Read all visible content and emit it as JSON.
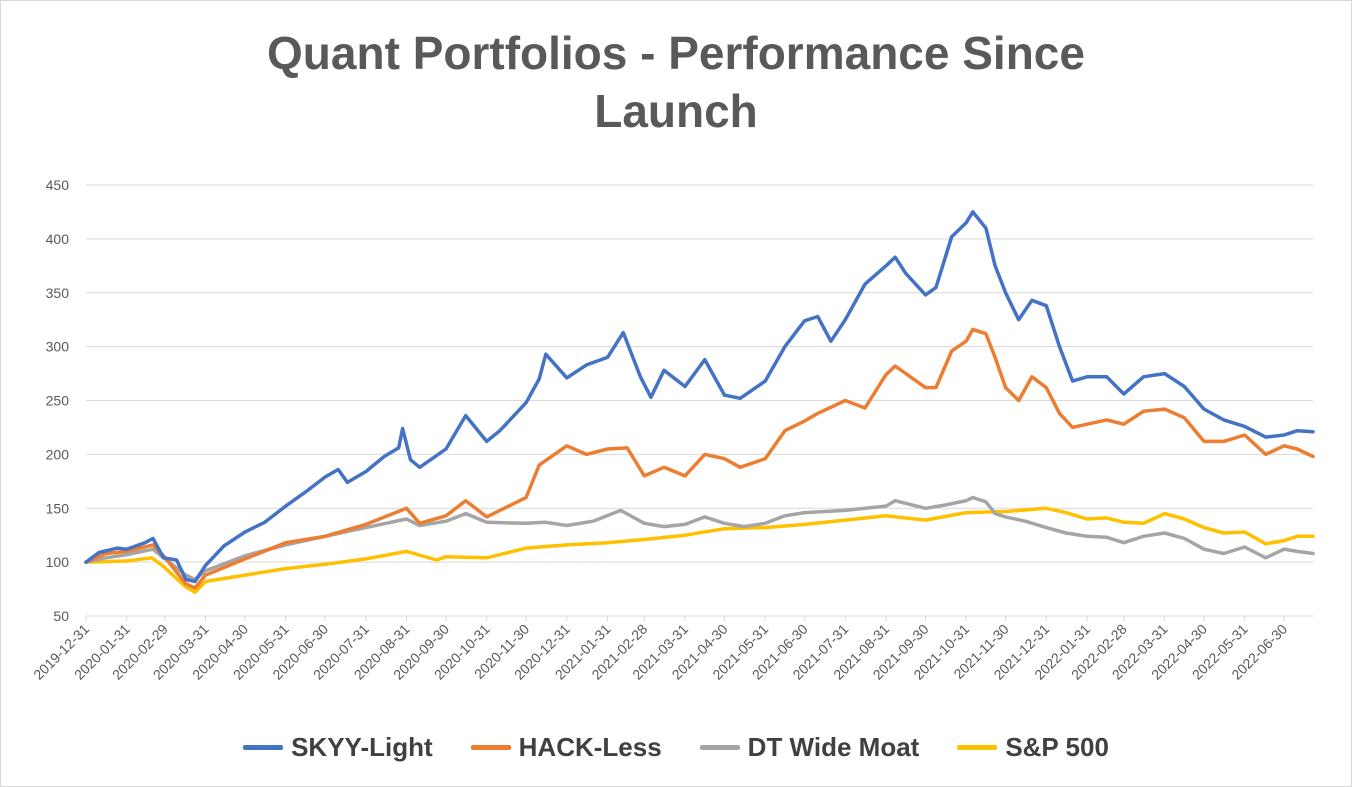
{
  "chart_data": {
    "type": "line",
    "title_lines": [
      "Quant Portfolios - Performance Since",
      "Launch"
    ],
    "xlabel": "",
    "ylabel": "",
    "ylim": [
      50,
      450
    ],
    "y_ticks": [
      50,
      100,
      150,
      200,
      250,
      300,
      350,
      400,
      450
    ],
    "x_ticks": [
      "2019-12-31",
      "2020-01-31",
      "2020-02-29",
      "2020-03-31",
      "2020-04-30",
      "2020-05-31",
      "2020-06-30",
      "2020-07-31",
      "2020-08-31",
      "2020-09-30",
      "2020-10-31",
      "2020-11-30",
      "2020-12-31",
      "2021-01-31",
      "2021-02-28",
      "2021-03-31",
      "2021-04-30",
      "2021-05-31",
      "2021-06-30",
      "2021-07-31",
      "2021-08-31",
      "2021-09-30",
      "2021-10-31",
      "2021-11-30",
      "2021-12-31",
      "2022-01-31",
      "2022-02-28",
      "2022-03-31",
      "2022-04-30",
      "2022-05-31",
      "2022-06-30"
    ],
    "x_end": "2022-07-22",
    "grid": true,
    "legend_position": "bottom",
    "series": [
      {
        "name": "SKYY-Light",
        "color": "#4472C4",
        "points": [
          [
            "2019-12-31",
            100
          ],
          [
            "2020-01-10",
            109
          ],
          [
            "2020-01-24",
            113
          ],
          [
            "2020-01-31",
            112
          ],
          [
            "2020-02-14",
            118
          ],
          [
            "2020-02-20",
            122
          ],
          [
            "2020-02-28",
            104
          ],
          [
            "2020-03-09",
            102
          ],
          [
            "2020-03-16",
            84
          ],
          [
            "2020-03-23",
            82
          ],
          [
            "2020-03-31",
            97
          ],
          [
            "2020-04-14",
            115
          ],
          [
            "2020-04-30",
            128
          ],
          [
            "2020-05-15",
            137
          ],
          [
            "2020-05-31",
            152
          ],
          [
            "2020-06-15",
            165
          ],
          [
            "2020-06-30",
            179
          ],
          [
            "2020-07-10",
            186
          ],
          [
            "2020-07-17",
            174
          ],
          [
            "2020-07-31",
            184
          ],
          [
            "2020-08-14",
            198
          ],
          [
            "2020-08-25",
            206
          ],
          [
            "2020-08-28",
            224
          ],
          [
            "2020-09-03",
            195
          ],
          [
            "2020-09-10",
            188
          ],
          [
            "2020-09-30",
            205
          ],
          [
            "2020-10-15",
            236
          ],
          [
            "2020-10-31",
            212
          ],
          [
            "2020-11-10",
            222
          ],
          [
            "2020-11-30",
            248
          ],
          [
            "2020-12-10",
            270
          ],
          [
            "2020-12-15",
            293
          ],
          [
            "2020-12-31",
            271
          ],
          [
            "2021-01-15",
            283
          ],
          [
            "2021-01-31",
            290
          ],
          [
            "2021-02-12",
            313
          ],
          [
            "2021-02-25",
            272
          ],
          [
            "2021-03-05",
            253
          ],
          [
            "2021-03-15",
            278
          ],
          [
            "2021-03-31",
            263
          ],
          [
            "2021-04-15",
            288
          ],
          [
            "2021-04-30",
            255
          ],
          [
            "2021-05-12",
            252
          ],
          [
            "2021-05-31",
            268
          ],
          [
            "2021-06-15",
            300
          ],
          [
            "2021-06-30",
            324
          ],
          [
            "2021-07-10",
            328
          ],
          [
            "2021-07-20",
            305
          ],
          [
            "2021-07-31",
            325
          ],
          [
            "2021-08-15",
            358
          ],
          [
            "2021-08-31",
            375
          ],
          [
            "2021-09-07",
            383
          ],
          [
            "2021-09-15",
            368
          ],
          [
            "2021-09-30",
            348
          ],
          [
            "2021-10-08",
            355
          ],
          [
            "2021-10-20",
            402
          ],
          [
            "2021-10-31",
            415
          ],
          [
            "2021-11-05",
            425
          ],
          [
            "2021-11-15",
            410
          ],
          [
            "2021-11-22",
            375
          ],
          [
            "2021-11-30",
            350
          ],
          [
            "2021-12-10",
            325
          ],
          [
            "2021-12-20",
            343
          ],
          [
            "2021-12-31",
            338
          ],
          [
            "2022-01-10",
            300
          ],
          [
            "2022-01-20",
            268
          ],
          [
            "2022-01-31",
            272
          ],
          [
            "2022-02-15",
            272
          ],
          [
            "2022-02-28",
            256
          ],
          [
            "2022-03-15",
            272
          ],
          [
            "2022-03-31",
            275
          ],
          [
            "2022-04-15",
            263
          ],
          [
            "2022-04-30",
            242
          ],
          [
            "2022-05-15",
            232
          ],
          [
            "2022-05-31",
            226
          ],
          [
            "2022-06-16",
            216
          ],
          [
            "2022-06-30",
            218
          ],
          [
            "2022-07-10",
            222
          ],
          [
            "2022-07-22",
            221
          ]
        ]
      },
      {
        "name": "HACK-Less",
        "color": "#ED7D31",
        "points": [
          [
            "2019-12-31",
            100
          ],
          [
            "2020-01-15",
            108
          ],
          [
            "2020-01-31",
            110
          ],
          [
            "2020-02-20",
            116
          ],
          [
            "2020-02-28",
            106
          ],
          [
            "2020-03-16",
            80
          ],
          [
            "2020-03-23",
            76
          ],
          [
            "2020-03-31",
            88
          ],
          [
            "2020-04-30",
            103
          ],
          [
            "2020-05-31",
            118
          ],
          [
            "2020-06-30",
            124
          ],
          [
            "2020-07-31",
            135
          ],
          [
            "2020-08-31",
            150
          ],
          [
            "2020-09-10",
            136
          ],
          [
            "2020-09-30",
            143
          ],
          [
            "2020-10-15",
            157
          ],
          [
            "2020-10-31",
            142
          ],
          [
            "2020-11-30",
            160
          ],
          [
            "2020-12-10",
            190
          ],
          [
            "2020-12-31",
            208
          ],
          [
            "2021-01-15",
            200
          ],
          [
            "2021-01-31",
            205
          ],
          [
            "2021-02-15",
            206
          ],
          [
            "2021-02-28",
            180
          ],
          [
            "2021-03-15",
            188
          ],
          [
            "2021-03-31",
            180
          ],
          [
            "2021-04-15",
            200
          ],
          [
            "2021-04-30",
            196
          ],
          [
            "2021-05-12",
            188
          ],
          [
            "2021-05-31",
            196
          ],
          [
            "2021-06-15",
            222
          ],
          [
            "2021-06-30",
            231
          ],
          [
            "2021-07-10",
            238
          ],
          [
            "2021-07-31",
            250
          ],
          [
            "2021-08-15",
            243
          ],
          [
            "2021-08-31",
            274
          ],
          [
            "2021-09-07",
            282
          ],
          [
            "2021-09-15",
            275
          ],
          [
            "2021-09-30",
            262
          ],
          [
            "2021-10-08",
            262
          ],
          [
            "2021-10-20",
            296
          ],
          [
            "2021-10-31",
            305
          ],
          [
            "2021-11-05",
            316
          ],
          [
            "2021-11-15",
            312
          ],
          [
            "2021-11-22",
            290
          ],
          [
            "2021-11-30",
            262
          ],
          [
            "2021-12-10",
            250
          ],
          [
            "2021-12-20",
            272
          ],
          [
            "2021-12-31",
            262
          ],
          [
            "2022-01-10",
            238
          ],
          [
            "2022-01-20",
            225
          ],
          [
            "2022-01-31",
            228
          ],
          [
            "2022-02-15",
            232
          ],
          [
            "2022-02-28",
            228
          ],
          [
            "2022-03-15",
            240
          ],
          [
            "2022-03-31",
            242
          ],
          [
            "2022-04-15",
            234
          ],
          [
            "2022-04-30",
            212
          ],
          [
            "2022-05-15",
            212
          ],
          [
            "2022-05-31",
            218
          ],
          [
            "2022-06-16",
            200
          ],
          [
            "2022-06-30",
            208
          ],
          [
            "2022-07-10",
            205
          ],
          [
            "2022-07-22",
            198
          ]
        ]
      },
      {
        "name": "DT Wide Moat",
        "color": "#A5A5A5",
        "points": [
          [
            "2019-12-31",
            100
          ],
          [
            "2020-01-15",
            104
          ],
          [
            "2020-01-31",
            107
          ],
          [
            "2020-02-20",
            112
          ],
          [
            "2020-02-28",
            104
          ],
          [
            "2020-03-16",
            88
          ],
          [
            "2020-03-23",
            84
          ],
          [
            "2020-03-31",
            92
          ],
          [
            "2020-04-30",
            106
          ],
          [
            "2020-05-31",
            116
          ],
          [
            "2020-06-30",
            124
          ],
          [
            "2020-07-31",
            132
          ],
          [
            "2020-08-31",
            140
          ],
          [
            "2020-09-10",
            134
          ],
          [
            "2020-09-30",
            138
          ],
          [
            "2020-10-15",
            145
          ],
          [
            "2020-10-31",
            137
          ],
          [
            "2020-11-30",
            136
          ],
          [
            "2020-12-15",
            137
          ],
          [
            "2020-12-31",
            134
          ],
          [
            "2021-01-20",
            138
          ],
          [
            "2021-02-10",
            148
          ],
          [
            "2021-02-28",
            136
          ],
          [
            "2021-03-15",
            133
          ],
          [
            "2021-03-31",
            135
          ],
          [
            "2021-04-15",
            142
          ],
          [
            "2021-04-30",
            136
          ],
          [
            "2021-05-15",
            133
          ],
          [
            "2021-05-31",
            136
          ],
          [
            "2021-06-15",
            143
          ],
          [
            "2021-06-30",
            146
          ],
          [
            "2021-07-31",
            148
          ],
          [
            "2021-08-15",
            150
          ],
          [
            "2021-08-31",
            152
          ],
          [
            "2021-09-07",
            157
          ],
          [
            "2021-09-30",
            150
          ],
          [
            "2021-10-15",
            153
          ],
          [
            "2021-10-31",
            157
          ],
          [
            "2021-11-05",
            160
          ],
          [
            "2021-11-15",
            156
          ],
          [
            "2021-11-22",
            145
          ],
          [
            "2021-11-30",
            142
          ],
          [
            "2021-12-15",
            138
          ],
          [
            "2021-12-31",
            132
          ],
          [
            "2022-01-15",
            127
          ],
          [
            "2022-01-31",
            124
          ],
          [
            "2022-02-15",
            123
          ],
          [
            "2022-02-28",
            118
          ],
          [
            "2022-03-15",
            124
          ],
          [
            "2022-03-31",
            127
          ],
          [
            "2022-04-15",
            122
          ],
          [
            "2022-04-30",
            112
          ],
          [
            "2022-05-15",
            108
          ],
          [
            "2022-05-31",
            114
          ],
          [
            "2022-06-16",
            104
          ],
          [
            "2022-06-30",
            112
          ],
          [
            "2022-07-10",
            110
          ],
          [
            "2022-07-22",
            108
          ]
        ]
      },
      {
        "name": "S&P 500",
        "color": "#FFC000",
        "points": [
          [
            "2019-12-31",
            100
          ],
          [
            "2020-01-31",
            101
          ],
          [
            "2020-02-19",
            104
          ],
          [
            "2020-02-28",
            96
          ],
          [
            "2020-03-16",
            77
          ],
          [
            "2020-03-23",
            72
          ],
          [
            "2020-03-31",
            82
          ],
          [
            "2020-04-30",
            88
          ],
          [
            "2020-05-31",
            94
          ],
          [
            "2020-06-30",
            98
          ],
          [
            "2020-07-31",
            103
          ],
          [
            "2020-08-31",
            110
          ],
          [
            "2020-09-23",
            102
          ],
          [
            "2020-09-30",
            105
          ],
          [
            "2020-10-31",
            104
          ],
          [
            "2020-11-30",
            113
          ],
          [
            "2020-12-31",
            116
          ],
          [
            "2021-01-31",
            118
          ],
          [
            "2021-02-28",
            121
          ],
          [
            "2021-03-31",
            125
          ],
          [
            "2021-04-30",
            131
          ],
          [
            "2021-05-31",
            132
          ],
          [
            "2021-06-30",
            135
          ],
          [
            "2021-07-31",
            139
          ],
          [
            "2021-08-31",
            143
          ],
          [
            "2021-09-30",
            139
          ],
          [
            "2021-10-31",
            146
          ],
          [
            "2021-11-30",
            147
          ],
          [
            "2021-12-31",
            150
          ],
          [
            "2022-01-15",
            146
          ],
          [
            "2022-01-31",
            140
          ],
          [
            "2022-02-15",
            141
          ],
          [
            "2022-02-28",
            137
          ],
          [
            "2022-03-15",
            136
          ],
          [
            "2022-03-31",
            145
          ],
          [
            "2022-04-15",
            140
          ],
          [
            "2022-04-30",
            132
          ],
          [
            "2022-05-15",
            127
          ],
          [
            "2022-05-31",
            128
          ],
          [
            "2022-06-16",
            117
          ],
          [
            "2022-06-30",
            120
          ],
          [
            "2022-07-10",
            124
          ],
          [
            "2022-07-22",
            124
          ]
        ]
      }
    ]
  }
}
